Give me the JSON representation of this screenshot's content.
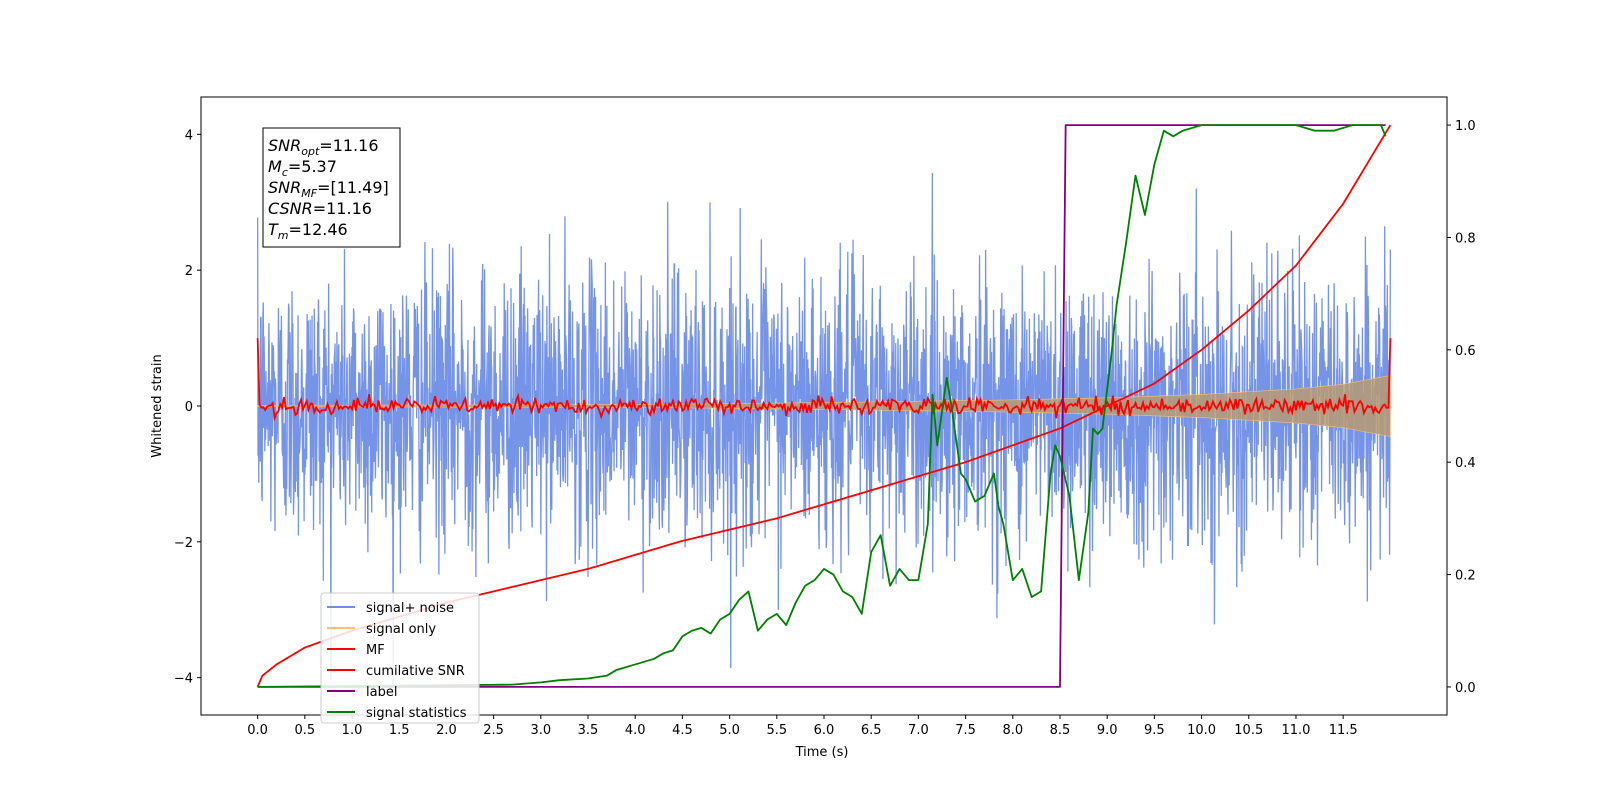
{
  "chart_data": {
    "type": "line",
    "title": "",
    "xlabel": "Time (s)",
    "ylabel": "Whitened strain",
    "xlim": [
      -0.6,
      12.6
    ],
    "ylim": [
      -4.55,
      4.55
    ],
    "y2lim": [
      -0.05,
      1.05
    ],
    "x_ticks": [
      "0.0",
      "0.5",
      "1.0",
      "1.5",
      "2.0",
      "2.5",
      "3.0",
      "3.5",
      "4.0",
      "4.5",
      "5.0",
      "5.5",
      "6.0",
      "6.5",
      "7.0",
      "7.5",
      "8.0",
      "8.5",
      "9.0",
      "9.5",
      "10.0",
      "10.5",
      "11.0",
      "11.5"
    ],
    "y_ticks": [
      "4",
      "2",
      "0",
      "−2",
      "−4"
    ],
    "y2_ticks": [
      "1.0",
      "0.8",
      "0.6",
      "0.4",
      "0.2",
      "0.0"
    ],
    "info_box": {
      "snr_opt": {
        "base": "SNR",
        "sub": "opt",
        "value": "=11.16"
      },
      "mc": {
        "base": "M",
        "sub": "c",
        "value": "=5.37"
      },
      "snr_mf": {
        "base": "SNR",
        "sub": "MF",
        "value": "=[11.49]"
      },
      "csnr": {
        "base": "CSNR",
        "value": "=11.16"
      },
      "tm": {
        "base": "T",
        "sub": "m",
        "value": "=12.46"
      }
    },
    "series": [
      {
        "name": "signal+ noise",
        "color": "#6f8ee6",
        "axis": "left",
        "kind": "noise",
        "x_range": [
          0,
          12
        ],
        "sigma": 1.0
      },
      {
        "name": "signal only",
        "color": "#ffc06b",
        "axis": "left",
        "kind": "envelope",
        "x": [
          0,
          4,
          6,
          8,
          9,
          10,
          11,
          11.5,
          12
        ],
        "amplitude": [
          0.01,
          0.02,
          0.05,
          0.09,
          0.12,
          0.17,
          0.25,
          0.32,
          0.45
        ]
      },
      {
        "name": "MF",
        "color": "#ff0000",
        "axis": "left",
        "kind": "mf",
        "x_range": [
          0,
          12
        ],
        "start": 1.0,
        "end": 1.0,
        "sigma": 0.06
      },
      {
        "name": "cumilative SNR",
        "color": "#ff0000",
        "axis": "right",
        "x": [
          0,
          0.05,
          0.2,
          0.5,
          1,
          1.5,
          2,
          2.5,
          3,
          3.5,
          4,
          4.5,
          5,
          5.5,
          6,
          6.5,
          7,
          7.5,
          8,
          8.5,
          9,
          9.5,
          10,
          10.5,
          11,
          11.5,
          12
        ],
        "y": [
          0,
          0.02,
          0.04,
          0.07,
          0.1,
          0.125,
          0.15,
          0.17,
          0.19,
          0.21,
          0.235,
          0.26,
          0.28,
          0.3,
          0.325,
          0.35,
          0.375,
          0.4,
          0.43,
          0.46,
          0.5,
          0.54,
          0.6,
          0.67,
          0.75,
          0.86,
          1.0
        ]
      },
      {
        "name": "label",
        "color": "#800080",
        "axis": "right",
        "x": [
          0,
          8.5,
          8.56,
          11.95
        ],
        "y": [
          0,
          0,
          1.0,
          1.0
        ]
      },
      {
        "name": "signal statistics",
        "color": "#008000",
        "axis": "right",
        "x": [
          0,
          2.7,
          3.0,
          3.2,
          3.5,
          3.7,
          3.8,
          4.0,
          4.2,
          4.3,
          4.4,
          4.5,
          4.6,
          4.7,
          4.8,
          4.9,
          5.0,
          5.1,
          5.2,
          5.3,
          5.4,
          5.5,
          5.6,
          5.7,
          5.8,
          5.9,
          6.0,
          6.1,
          6.2,
          6.3,
          6.4,
          6.5,
          6.6,
          6.7,
          6.8,
          6.9,
          7.0,
          7.1,
          7.15,
          7.2,
          7.3,
          7.35,
          7.45,
          7.5,
          7.6,
          7.7,
          7.8,
          7.85,
          7.9,
          8.0,
          8.1,
          8.2,
          8.3,
          8.4,
          8.45,
          8.5,
          8.6,
          8.7,
          8.8,
          8.85,
          8.9,
          8.95,
          9.0,
          9.05,
          9.1,
          9.2,
          9.3,
          9.4,
          9.5,
          9.6,
          9.7,
          9.8,
          10.0,
          10.5,
          11.0,
          11.2,
          11.4,
          11.6,
          11.9,
          11.95
        ],
        "y": [
          0.0,
          0.004,
          0.008,
          0.012,
          0.015,
          0.02,
          0.03,
          0.04,
          0.05,
          0.06,
          0.065,
          0.09,
          0.1,
          0.105,
          0.095,
          0.12,
          0.13,
          0.155,
          0.17,
          0.1,
          0.12,
          0.13,
          0.11,
          0.15,
          0.18,
          0.19,
          0.21,
          0.2,
          0.17,
          0.16,
          0.13,
          0.24,
          0.27,
          0.18,
          0.21,
          0.19,
          0.19,
          0.29,
          0.52,
          0.43,
          0.55,
          0.5,
          0.38,
          0.37,
          0.33,
          0.34,
          0.38,
          0.32,
          0.29,
          0.19,
          0.21,
          0.16,
          0.17,
          0.38,
          0.43,
          0.41,
          0.34,
          0.19,
          0.31,
          0.46,
          0.45,
          0.46,
          0.53,
          0.6,
          0.68,
          0.79,
          0.91,
          0.84,
          0.93,
          0.99,
          0.98,
          0.99,
          1.0,
          1.0,
          1.0,
          0.99,
          0.99,
          1.0,
          1.0,
          0.98
        ]
      }
    ],
    "legend_location": "lower-left",
    "grid": false
  }
}
